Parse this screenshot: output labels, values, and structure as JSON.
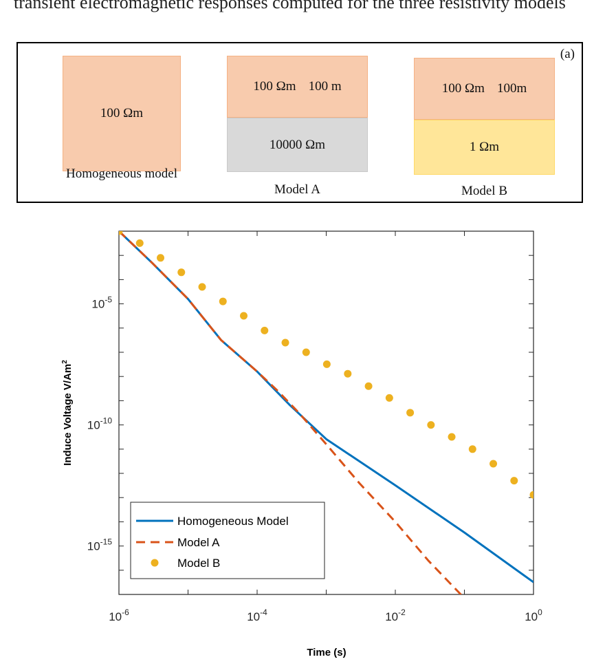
{
  "top_line_text": "transient electromagnetic responses computed for the three resistivity models",
  "models_panel": {
    "panel_label": "(a)",
    "models": [
      {
        "name": "Homogeneous model",
        "layers": [
          {
            "resistivity": "100 Ωm",
            "thickness": "",
            "color": "#f8cbad"
          }
        ]
      },
      {
        "name": "Model A",
        "layers": [
          {
            "resistivity": "100 Ωm",
            "thickness": "100 m",
            "color": "#f8cbad"
          },
          {
            "resistivity": "10000 Ωm",
            "thickness": "",
            "color": "#d9d9d9"
          }
        ]
      },
      {
        "name": "Model B",
        "layers": [
          {
            "resistivity": "100 Ωm",
            "thickness": "100m",
            "color": "#f8cbad"
          },
          {
            "resistivity": "1 Ωm",
            "thickness": "",
            "color": "#ffe699"
          }
        ]
      }
    ]
  },
  "chart_data": {
    "type": "line",
    "title": "",
    "xlabel": "Time (s)",
    "ylabel_text": "Induce Voltage V/Am",
    "ylabel_superscript": "2",
    "xscale": "log",
    "yscale": "log",
    "xlim": [
      1e-06,
      1
    ],
    "ylim": [
      1e-17,
      0.01
    ],
    "x_ticks": [
      {
        "base": "10",
        "exp": "-6"
      },
      {
        "base": "10",
        "exp": "-4"
      },
      {
        "base": "10",
        "exp": "-2"
      },
      {
        "base": "10",
        "exp": "0"
      }
    ],
    "y_ticks": [
      {
        "base": "10",
        "exp": "-5"
      },
      {
        "base": "10",
        "exp": "-10"
      },
      {
        "base": "10",
        "exp": "-15"
      }
    ],
    "grid": false,
    "legend_position": "bottom-left",
    "series": [
      {
        "name": "Homogeneous Model",
        "color": "#0072bd",
        "style": "solid",
        "x": [
          1e-06,
          3e-06,
          1e-05,
          3e-05,
          0.0001,
          0.0003,
          0.001,
          0.01,
          0.1,
          1
        ],
        "y": [
          0.01,
          0.0005,
          1.58e-05,
          3.2e-07,
          1.6e-08,
          6.4e-10,
          2.6e-11,
          3.2e-13,
          3.6e-15,
          3.2e-17
        ]
      },
      {
        "name": "Model A",
        "color": "#d95319",
        "style": "dashed",
        "x": [
          1e-06,
          3e-06,
          1e-05,
          3e-05,
          0.0001,
          0.0002,
          0.0004,
          0.001,
          0.003,
          0.01,
          0.03,
          0.13
        ],
        "y": [
          0.01,
          0.0005,
          1.58e-05,
          3.2e-07,
          1.6e-08,
          2.5e-09,
          3.2e-10,
          1.6e-11,
          4e-13,
          1e-14,
          2.5e-16,
          3.2e-18
        ]
      },
      {
        "name": "Model B",
        "color": "#edb120",
        "style": "markers",
        "x": [
          1e-06,
          2e-06,
          4e-06,
          8e-06,
          1.6e-05,
          3.2e-05,
          6.4e-05,
          0.000128,
          0.000256,
          0.000512,
          0.00102,
          0.00205,
          0.0041,
          0.0082,
          0.0164,
          0.0328,
          0.0655,
          0.131,
          0.262,
          0.524,
          1.0
        ],
        "y": [
          0.01,
          0.0032,
          0.00079,
          0.0002,
          5e-05,
          1.26e-05,
          3.2e-06,
          7.9e-07,
          2.5e-07,
          1e-07,
          3.2e-08,
          1.3e-08,
          4e-09,
          1.3e-09,
          3.2e-10,
          1e-10,
          3.2e-11,
          1e-11,
          2.5e-12,
          5e-13,
          1.3e-13
        ]
      }
    ]
  }
}
